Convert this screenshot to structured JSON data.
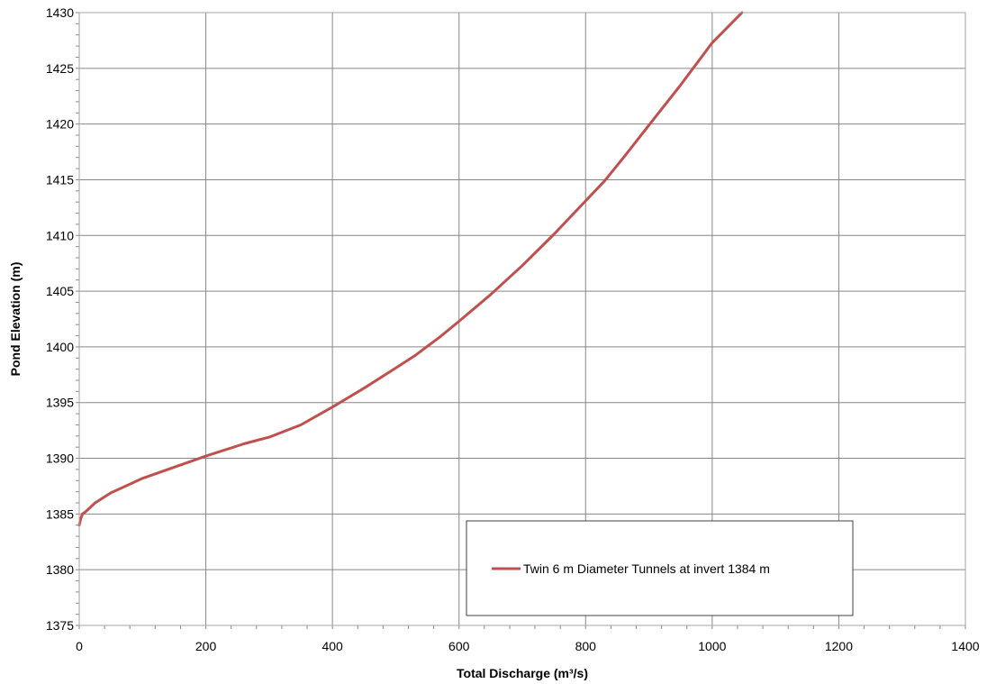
{
  "chart_data": {
    "type": "line",
    "title": "",
    "xlabel": "Total Discharge (m³/s)",
    "ylabel": "Pond Elevation (m)",
    "xlim": [
      0,
      1400
    ],
    "ylim": [
      1375,
      1430
    ],
    "x_ticks": [
      0,
      200,
      400,
      600,
      800,
      1000,
      1200,
      1400
    ],
    "y_ticks": [
      1375,
      1380,
      1385,
      1390,
      1395,
      1400,
      1405,
      1410,
      1415,
      1420,
      1425,
      1430
    ],
    "x_tick_labels": [
      "0",
      "200",
      "400",
      "600",
      "800",
      "1000",
      "1200",
      "1400"
    ],
    "y_tick_labels": [
      "1375",
      "1380",
      "1385",
      "1390",
      "1395",
      "1400",
      "1405",
      "1410",
      "1415",
      "1420",
      "1425",
      "1430"
    ],
    "grid": true,
    "legend_position": "bottom-right",
    "series": [
      {
        "name": "Twin 6 m Diameter Tunnels at invert 1384 m",
        "color": "#c0504d",
        "x": [
          0,
          2,
          5,
          10,
          25,
          50,
          100,
          150,
          200,
          260,
          300,
          350,
          400,
          450,
          500,
          530,
          570,
          600,
          650,
          700,
          750,
          800,
          830,
          860,
          900,
          950,
          1000,
          1047
        ],
        "y": [
          1384.0,
          1384.5,
          1385.0,
          1385.2,
          1386.0,
          1386.9,
          1388.2,
          1389.2,
          1390.2,
          1391.3,
          1391.9,
          1393.0,
          1394.6,
          1396.3,
          1398.1,
          1399.2,
          1400.9,
          1402.3,
          1404.7,
          1407.3,
          1410.1,
          1413.1,
          1414.9,
          1417.0,
          1419.9,
          1423.5,
          1427.3,
          1430.0
        ]
      }
    ]
  }
}
